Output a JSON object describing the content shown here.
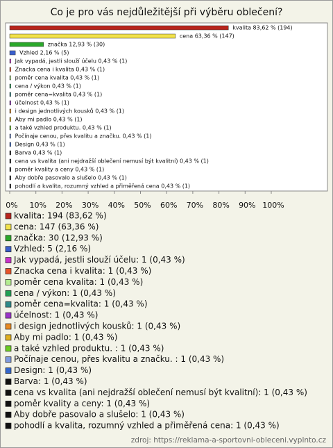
{
  "chart_data": {
    "type": "barh",
    "title": "Co je pro vás nejdůležitější při výběru oblečení?",
    "categories": [
      "kvalita",
      "cena",
      "značka",
      "Vzhled",
      "Jak vypadá, jestli slouží účelu",
      "Znacka cena i kvalita",
      "poměr cena kvalita",
      "cena / výkon",
      "poměr cena=kvalita",
      "účelnost",
      "i design jednotlivých kousků",
      "Aby mi padlo",
      "a také vzhled produktu. ",
      "Počínaje cenou, přes kvalitu a značku. ",
      "Design",
      "Barva",
      "cena vs kvalita (ani nejdražší oblečení nemusí být kvalitní)",
      "poměr kvality a ceny",
      "Aby dobře pasovalo a slušelo",
      "pohodlí a kvalita, rozumný vzhled a přiměřená cena"
    ],
    "values": [
      83.62,
      63.36,
      12.93,
      2.16,
      0.43,
      0.43,
      0.43,
      0.43,
      0.43,
      0.43,
      0.43,
      0.43,
      0.43,
      0.43,
      0.43,
      0.43,
      0.43,
      0.43,
      0.43,
      0.43
    ],
    "value_labels": [
      "kvalita 83,62 % (194)",
      "cena 63,36 % (147)",
      "značka 12,93 % (30)",
      "Vzhled 2,16 % (5)",
      "Jak vypadá, jestli slouží účelu 0,43 % (1)",
      "Znacka cena i kvalita 0,43 % (1)",
      "poměr cena kvalita 0,43 % (1)",
      "cena / výkon 0,43 % (1)",
      "poměr cena=kvalita 0,43 % (1)",
      "účelnost 0,43 % (1)",
      "i design jednotlivých kousků 0,43 % (1)",
      "Aby mi padlo 0,43 % (1)",
      "a také vzhled produktu.  0,43 % (1)",
      "Počínaje cenou, přes kvalitu a značku.  0,43 % (1)",
      "Design 0,43 % (1)",
      "Barva 0,43 % (1)",
      "cena vs kvalita (ani nejdražší oblečení nemusí být kvalitní) 0,43 % (1)",
      "poměr kvality a ceny 0,43 % (1)",
      "Aby dobře pasovalo a slušelo 0,43 % (1)",
      "pohodlí a kvalita, rozumný vzhled a přiměřená cena 0,43 % (1)"
    ],
    "legend_labels": [
      "kvalita: 194 (83,62 %)",
      "cena: 147 (63,36 %)",
      "značka: 30 (12,93 %)",
      "Vzhled: 5 (2,16 %)",
      "Jak vypadá, jestli slouží účelu: 1 (0,43 %)",
      "Znacka cena i kvalita: 1 (0,43 %)",
      "poměr cena kvalita: 1 (0,43 %)",
      "cena / výkon: 1 (0,43 %)",
      "poměr cena=kvalita: 1 (0,43 %)",
      "účelnost: 1 (0,43 %)",
      "i design jednotlivých kousků: 1 (0,43 %)",
      "Aby mi padlo: 1 (0,43 %)",
      "a také vzhled produktu. : 1 (0,43 %)",
      "Počínaje cenou, přes kvalitu a značku. : 1 (0,43 %)",
      "Design: 1 (0,43 %)",
      "Barva: 1 (0,43 %)",
      "cena vs kvalita (ani nejdražší oblečení nemusí být kvalitní): 1 (0,43 %)",
      "poměr kvality a ceny: 1 (0,43 %)",
      "Aby dobře pasovalo a slušelo: 1 (0,43 %)",
      "pohodlí a kvalita, rozumný vzhled a přiměřená cena: 1 (0,43 %)"
    ],
    "colors": [
      "#b8241c",
      "#f2e24a",
      "#2aa82a",
      "#3a5fcd",
      "#cc33cc",
      "#e8542a",
      "#b4ec90",
      "#22a055",
      "#2f8a8a",
      "#9b35c8",
      "#e88a22",
      "#e0b020",
      "#6acc22",
      "#7f9be0",
      "#3366cc",
      "#111111",
      "#111111",
      "#111111",
      "#111111",
      "#111111"
    ],
    "xlim": [
      0,
      100
    ],
    "xticks": [
      {
        "value": 0,
        "label": "0%"
      },
      {
        "value": 10,
        "label": "10%"
      },
      {
        "value": 20,
        "label": "20%"
      },
      {
        "value": 30,
        "label": "30%"
      },
      {
        "value": 40,
        "label": "40%"
      },
      {
        "value": 50,
        "label": "50%"
      },
      {
        "value": 60,
        "label": "60%"
      },
      {
        "value": 70,
        "label": "70%"
      },
      {
        "value": 80,
        "label": "80%"
      },
      {
        "value": 90,
        "label": "90%"
      },
      {
        "value": 100,
        "label": "100%"
      }
    ],
    "source": "zdroj: https://reklama-a-sportovni-obleceni.vyplnto.cz"
  }
}
